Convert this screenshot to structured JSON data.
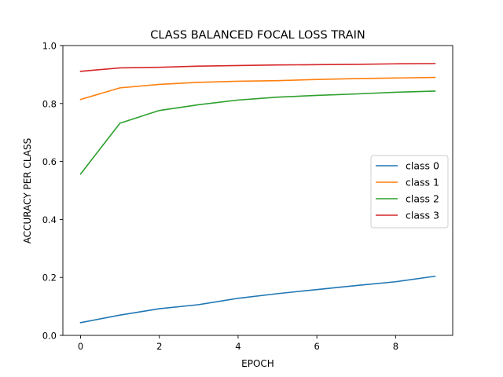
{
  "chart_data": {
    "type": "line",
    "title": "CLASS BALANCED FOCAL LOSS TRAIN",
    "xlabel": "EPOCH",
    "ylabel": "ACCURACY PER CLASS",
    "xlim": [
      -0.45,
      9.45
    ],
    "ylim": [
      0.0,
      1.0
    ],
    "xticks": [
      0,
      2,
      4,
      6,
      8
    ],
    "xtick_labels": [
      "0",
      "2",
      "4",
      "6",
      "8"
    ],
    "yticks": [
      0.0,
      0.2,
      0.4,
      0.6,
      0.8,
      1.0
    ],
    "ytick_labels": [
      "0.0",
      "0.2",
      "0.4",
      "0.6",
      "0.8",
      "1.0"
    ],
    "grid": false,
    "legend_position": "center-right",
    "x": [
      0,
      1,
      2,
      3,
      4,
      5,
      6,
      7,
      8,
      9
    ],
    "series": [
      {
        "name": "class 0",
        "color": "#1f77b4",
        "values": [
          0.044,
          0.07,
          0.092,
          0.106,
          0.128,
          0.144,
          0.158,
          0.172,
          0.185,
          0.204
        ]
      },
      {
        "name": "class 1",
        "color": "#ff7f0e",
        "values": [
          0.814,
          0.854,
          0.866,
          0.873,
          0.877,
          0.879,
          0.883,
          0.886,
          0.888,
          0.89
        ]
      },
      {
        "name": "class 2",
        "color": "#2ca02c",
        "values": [
          0.557,
          0.732,
          0.776,
          0.796,
          0.812,
          0.822,
          0.828,
          0.833,
          0.839,
          0.843
        ]
      },
      {
        "name": "class 3",
        "color": "#d62728",
        "values": [
          0.911,
          0.923,
          0.925,
          0.929,
          0.931,
          0.933,
          0.934,
          0.935,
          0.937,
          0.938
        ]
      }
    ]
  }
}
